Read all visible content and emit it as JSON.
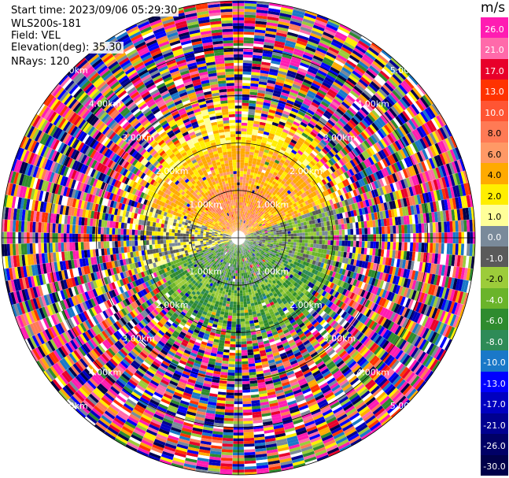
{
  "header": {
    "start_time": "Start time: 2023/09/06 05:29:30",
    "station": "WLS200s-181",
    "field": "Field: VEL",
    "elevation": "Elevation(deg): 35.30",
    "nrays": "NRays: 120"
  },
  "colorbar": {
    "title": "m/s",
    "levels": [
      "26.0",
      "21.0",
      "17.0",
      "13.0",
      "10.0",
      "8.0",
      "6.0",
      "4.0",
      "2.0",
      "1.0",
      "0.0",
      "-1.0",
      "-2.0",
      "-4.0",
      "-6.0",
      "-8.0",
      "-10.0",
      "-13.0",
      "-17.0",
      "-21.0",
      "-26.0",
      "-30.0"
    ],
    "colors": [
      "#ff1cb2",
      "#ff6aaa",
      "#e8002a",
      "#ff3300",
      "#ff5533",
      "#ff7a55",
      "#ff9966",
      "#ffaa00",
      "#ffee00",
      "#ffff99",
      "#7a8a9a",
      "#5a5a5a",
      "#9ccc3a",
      "#6ab42a",
      "#2e8b2e",
      "#2e8b57",
      "#1a78c8",
      "#0000ff",
      "#0000c0",
      "#000090",
      "#000066",
      "#00004a"
    ]
  },
  "chart_data": {
    "type": "heatmap",
    "title": "",
    "field": "VEL",
    "units": "m/s",
    "nrays": 120,
    "range_rings_km": [
      1.0,
      2.0,
      3.0,
      4.0,
      5.0
    ],
    "range_labels": [
      "1.00km",
      "2.00km",
      "3.00km",
      "4.00km",
      "5.00km"
    ],
    "velocity_range": [
      -30.0,
      26.0
    ],
    "description_values": {
      "north_near_field_ms": [
        2.0,
        13.0
      ],
      "south_near_field_ms": [
        -8.0,
        -1.0
      ],
      "east_west_near_field_ms": [
        -1.0,
        1.0
      ],
      "far_field": "noise, full color range"
    }
  }
}
